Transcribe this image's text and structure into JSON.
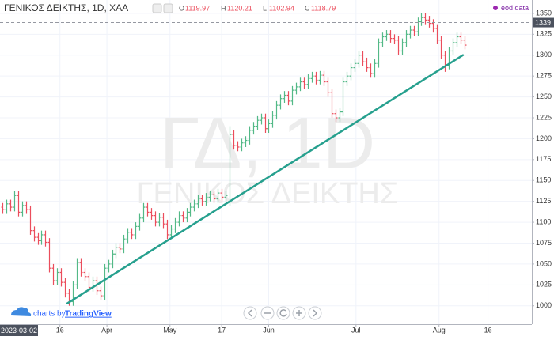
{
  "chart_data": {
    "type": "ohlc",
    "title": "ΓΕΝΙΚΟΣ ΔΕΙΚΤΗΣ, 1D, ΧΑΑ",
    "ohlc_legend": [
      {
        "label": "O",
        "value": 1119.97
      },
      {
        "label": "H",
        "value": 1120.21
      },
      {
        "label": "L",
        "value": 1102.94
      },
      {
        "label": "C",
        "value": 1118.79
      }
    ],
    "source": "eod data",
    "watermark": [
      "ΓΔ, 1D",
      "ΓΕΝΙΚΟΣ ΔΕΙΚΤΗΣ"
    ],
    "credit": "charts by",
    "credit_brand": "TradingView",
    "up_color": "#53b987",
    "down_color": "#eb4d5c",
    "open": [
      1118,
      1115,
      1122,
      1118,
      1132,
      1112,
      1120,
      1115,
      1090,
      1082,
      1078,
      1085,
      1076,
      1045,
      1030,
      1040,
      1028,
      1015,
      1005,
      1025,
      1052,
      1040,
      1035,
      1022,
      1030,
      1018,
      1012,
      1045,
      1050,
      1062,
      1070,
      1068,
      1080,
      1088,
      1085,
      1095,
      1105,
      1118,
      1112,
      1108,
      1100,
      1106,
      1098,
      1085,
      1092,
      1100,
      1108,
      1105,
      1112,
      1118,
      1122,
      1128,
      1125,
      1130,
      1133,
      1128,
      1135,
      1130,
      1125,
      1205,
      1192,
      1190,
      1195,
      1198,
      1210,
      1215,
      1222,
      1225,
      1212,
      1218,
      1228,
      1240,
      1248,
      1252,
      1245,
      1258,
      1262,
      1268,
      1265,
      1272,
      1275,
      1270,
      1276,
      1268,
      1255,
      1230,
      1225,
      1232,
      1268,
      1275,
      1285,
      1290,
      1300,
      1292,
      1285,
      1278,
      1290,
      1315,
      1322,
      1325,
      1320,
      1318,
      1305,
      1315,
      1325,
      1330,
      1328,
      1340,
      1345,
      1342,
      1338,
      1332,
      1318,
      1300,
      1288,
      1305,
      1315,
      1322,
      1318
    ],
    "high": [
      1123,
      1127,
      1127,
      1137,
      1137,
      1125,
      1125,
      1120,
      1095,
      1087,
      1090,
      1090,
      1081,
      1050,
      1045,
      1045,
      1033,
      1020,
      1030,
      1057,
      1057,
      1045,
      1040,
      1035,
      1035,
      1023,
      1050,
      1055,
      1067,
      1075,
      1075,
      1085,
      1093,
      1093,
      1100,
      1110,
      1123,
      1123,
      1117,
      1113,
      1111,
      1111,
      1103,
      1097,
      1105,
      1113,
      1113,
      1117,
      1123,
      1127,
      1133,
      1133,
      1135,
      1138,
      1138,
      1140,
      1140,
      1137,
      1215,
      1210,
      1197,
      1200,
      1203,
      1215,
      1220,
      1227,
      1230,
      1230,
      1223,
      1233,
      1245,
      1253,
      1257,
      1257,
      1263,
      1267,
      1273,
      1273,
      1277,
      1280,
      1280,
      1281,
      1281,
      1273,
      1260,
      1235,
      1237,
      1273,
      1280,
      1290,
      1295,
      1305,
      1305,
      1297,
      1290,
      1295,
      1320,
      1327,
      1330,
      1330,
      1325,
      1323,
      1320,
      1330,
      1335,
      1335,
      1345,
      1350,
      1350,
      1347,
      1343,
      1337,
      1323,
      1305,
      1310,
      1320,
      1327,
      1327,
      1323
    ],
    "low": [
      1110,
      1110,
      1113,
      1113,
      1107,
      1107,
      1110,
      1085,
      1077,
      1073,
      1073,
      1071,
      1040,
      1025,
      1025,
      1023,
      1010,
      1000,
      1000,
      1020,
      1035,
      1030,
      1017,
      1017,
      1013,
      1007,
      1007,
      1040,
      1045,
      1057,
      1063,
      1063,
      1075,
      1080,
      1080,
      1090,
      1100,
      1107,
      1103,
      1095,
      1095,
      1093,
      1080,
      1080,
      1087,
      1095,
      1100,
      1100,
      1107,
      1113,
      1117,
      1120,
      1120,
      1125,
      1123,
      1123,
      1125,
      1125,
      1120,
      1187,
      1185,
      1185,
      1190,
      1193,
      1205,
      1210,
      1217,
      1207,
      1207,
      1213,
      1223,
      1235,
      1243,
      1240,
      1240,
      1253,
      1257,
      1260,
      1260,
      1267,
      1265,
      1265,
      1263,
      1250,
      1225,
      1220,
      1220,
      1227,
      1263,
      1270,
      1280,
      1285,
      1287,
      1280,
      1273,
      1273,
      1285,
      1310,
      1317,
      1315,
      1313,
      1300,
      1300,
      1310,
      1320,
      1323,
      1323,
      1335,
      1337,
      1333,
      1327,
      1313,
      1295,
      1280,
      1283,
      1300,
      1310,
      1313,
      1307
    ],
    "close": [
      1115,
      1122,
      1118,
      1132,
      1112,
      1120,
      1115,
      1090,
      1082,
      1078,
      1085,
      1076,
      1045,
      1030,
      1040,
      1028,
      1015,
      1005,
      1025,
      1052,
      1040,
      1035,
      1022,
      1030,
      1018,
      1012,
      1045,
      1050,
      1062,
      1070,
      1068,
      1080,
      1088,
      1085,
      1095,
      1105,
      1118,
      1112,
      1108,
      1100,
      1106,
      1098,
      1085,
      1092,
      1100,
      1108,
      1105,
      1112,
      1118,
      1122,
      1128,
      1125,
      1130,
      1133,
      1128,
      1135,
      1130,
      1132,
      1205,
      1192,
      1190,
      1195,
      1198,
      1210,
      1215,
      1222,
      1225,
      1212,
      1218,
      1228,
      1240,
      1248,
      1252,
      1245,
      1258,
      1262,
      1268,
      1265,
      1272,
      1275,
      1270,
      1276,
      1268,
      1255,
      1230,
      1225,
      1232,
      1268,
      1275,
      1285,
      1290,
      1300,
      1292,
      1285,
      1278,
      1290,
      1315,
      1322,
      1325,
      1320,
      1318,
      1305,
      1315,
      1325,
      1330,
      1328,
      1340,
      1345,
      1342,
      1338,
      1332,
      1318,
      1300,
      1288,
      1305,
      1315,
      1322,
      1318,
      1312
    ],
    "xlim": [
      -0.6,
      135.2
    ],
    "xticks": [
      {
        "value": 14.7,
        "label": "16"
      },
      {
        "value": 26.7,
        "label": "Apr"
      },
      {
        "value": 42.8,
        "label": "May"
      },
      {
        "value": 56,
        "label": "17"
      },
      {
        "value": 68,
        "label": "Jun"
      },
      {
        "value": 90.3,
        "label": "Jul"
      },
      {
        "value": 111.5,
        "label": "Aug"
      },
      {
        "value": 124,
        "label": "16"
      }
    ],
    "ylim": [
      978,
      1366
    ],
    "yticks": [
      1000,
      1025,
      1050,
      1075,
      1100,
      1125,
      1150,
      1175,
      1200,
      1225,
      1250,
      1275,
      1300,
      1325,
      1350
    ],
    "grid": true,
    "crosshair": {
      "price": 1339,
      "date": "2023-03-02"
    },
    "trend_line": {
      "color": "#26a08e",
      "x": [
        16.6,
        117.6
      ],
      "y": [
        1003,
        1300
      ]
    }
  }
}
